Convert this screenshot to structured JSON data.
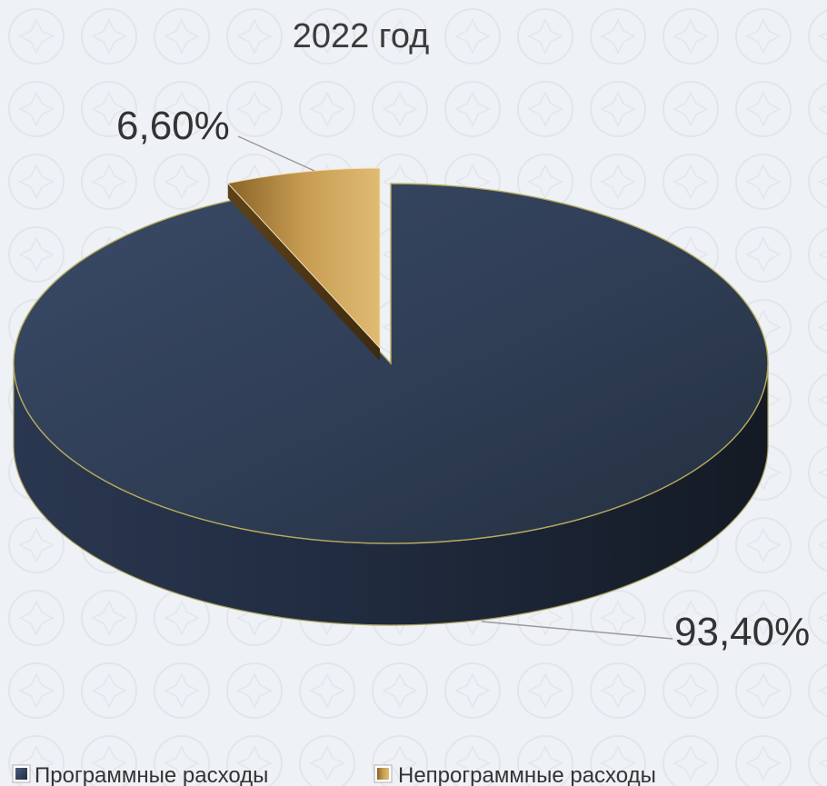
{
  "chart_data": {
    "type": "pie",
    "title": "2022 год",
    "slices": [
      {
        "name": "Программные расходы",
        "value": 93.4,
        "label": "93,40%",
        "color": "#2d3b52"
      },
      {
        "name": "Непрограммные расходы",
        "value": 6.6,
        "label": "6,60%",
        "color": "#c9a45e"
      }
    ],
    "style": "3d-exploded",
    "legend_position": "bottom"
  }
}
